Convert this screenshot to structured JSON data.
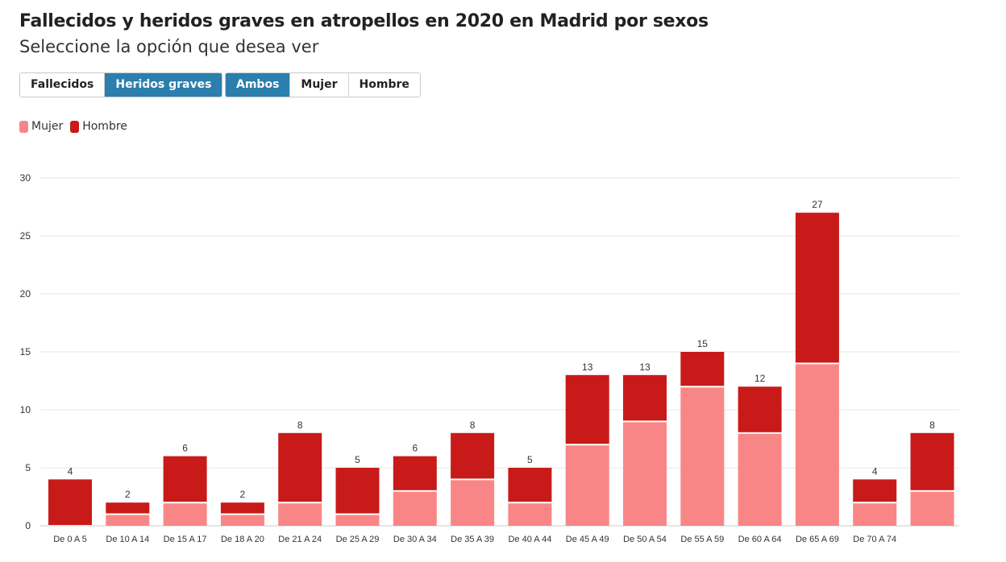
{
  "header": {
    "title": "Fallecidos y heridos graves en atropellos en 2020 en Madrid por sexos",
    "subtitle": "Seleccione la opción que desea ver"
  },
  "controls": {
    "type_buttons": [
      {
        "label": "Fallecidos",
        "active": false
      },
      {
        "label": "Heridos graves",
        "active": true
      }
    ],
    "sex_buttons": [
      {
        "label": "Ambos",
        "active": true
      },
      {
        "label": "Mujer",
        "active": false
      },
      {
        "label": "Hombre",
        "active": false
      }
    ]
  },
  "colors": {
    "mujer": "#f98686",
    "hombre": "#c91a1a",
    "accent": "#2a7fad"
  },
  "chart_data": {
    "type": "bar",
    "stacked": true,
    "title": "Fallecidos y heridos graves en atropellos en 2020 en Madrid por sexos",
    "xlabel": "",
    "ylabel": "",
    "ylim": [
      0,
      30
    ],
    "yticks": [
      0,
      5,
      10,
      15,
      20,
      25,
      30
    ],
    "grid": true,
    "legend": "top-left",
    "categories": [
      "De 0 A 5",
      "De 10 A 14",
      "De 15 A 17",
      "De 18 A 20",
      "De 21 A 24",
      "De 25 A 29",
      "De 30 A 34",
      "De 35 A 39",
      "De 40 A 44",
      "De 45 A 49",
      "De 50 A 54",
      "De 55 A 59",
      "De 60 A 64",
      "De 65 A 69",
      "De 70 A 74",
      ""
    ],
    "series": [
      {
        "name": "Mujer",
        "values": [
          0,
          1,
          2,
          1,
          2,
          1,
          3,
          4,
          2,
          7,
          9,
          12,
          8,
          14,
          2,
          3
        ]
      },
      {
        "name": "Hombre",
        "values": [
          4,
          1,
          4,
          1,
          6,
          4,
          3,
          4,
          3,
          6,
          4,
          3,
          4,
          13,
          2,
          5
        ]
      }
    ],
    "totals": [
      4,
      2,
      6,
      2,
      8,
      5,
      6,
      8,
      5,
      13,
      13,
      15,
      12,
      27,
      4,
      8
    ]
  }
}
